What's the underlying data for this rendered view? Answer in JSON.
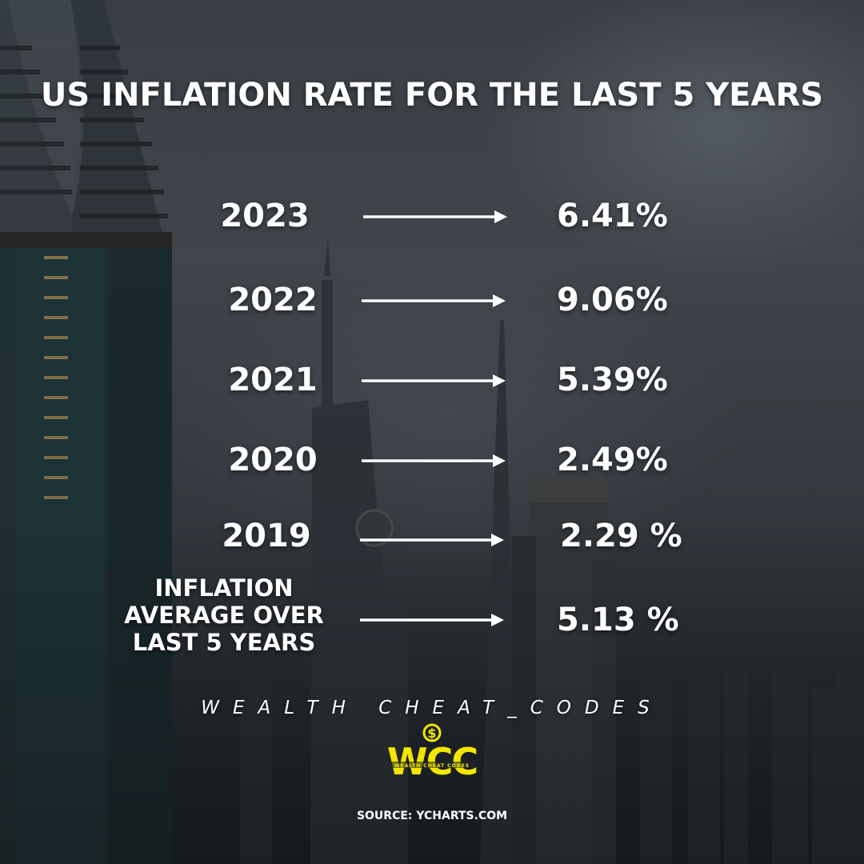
{
  "title": "US INFLATION RATE FOR THE LAST 5 YEARS",
  "rows": [
    {
      "year": "2023",
      "value": "6.41%"
    },
    {
      "year": "2022",
      "value": "9.06%"
    },
    {
      "year": "2021",
      "value": "5.39%"
    },
    {
      "year": "2020",
      "value": "2.49%"
    },
    {
      "year": "2019",
      "value": "2.29 %"
    }
  ],
  "average": {
    "label_line1": "INFLATION",
    "label_line2": "AVERAGE OVER",
    "label_line3": "LAST 5 YEARS",
    "value": "5.13 %"
  },
  "brand": {
    "name": "WEALTH CHEAT_CODES",
    "logo_text": "WCC",
    "logo_subtext": "WEALTH CHEAT CODES",
    "logo_symbol": "$",
    "logo_color": "#f2e600"
  },
  "source": "SOURCE: YCHARTS.COM",
  "icons": {
    "arrow": "right-arrow-icon"
  },
  "colors": {
    "text": "#ffffff",
    "accent": "#f2e600"
  }
}
